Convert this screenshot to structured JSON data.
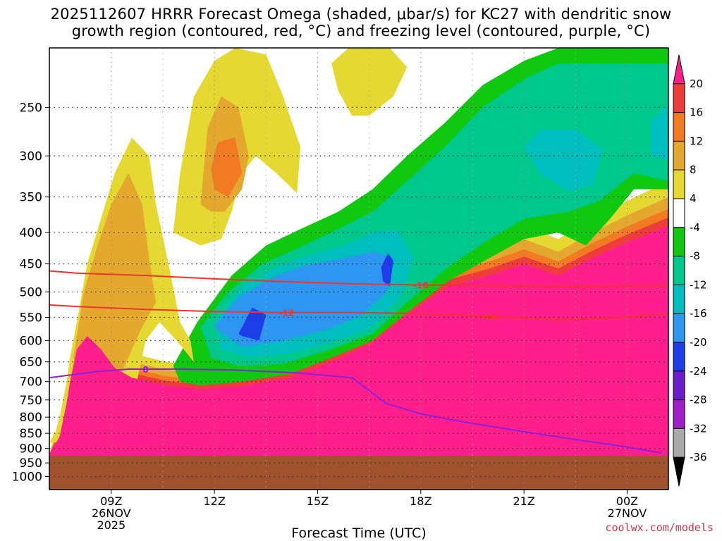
{
  "header": {
    "title_line1": "2025112607 HRRR Forecast Omega (shaded, μbar/s) for KC27 with dendritic snow",
    "title_line2": "growth region (contoured, red, °C) and freezing level (contoured, purple, °C)"
  },
  "credit": "coolwx.com/models",
  "chart_data": {
    "type": "heatmap",
    "title": "2025112607 HRRR Forecast Omega (shaded, μbar/s) for KC27 with dendritic snow growth region (contoured, red, °C) and freezing level (contoured, purple, °C)",
    "xlabel": "Forecast Time (UTC)",
    "ylabel": "",
    "x_range_hours": [
      7.2,
      25.2
    ],
    "y_range_hpa": [
      200,
      1050
    ],
    "y_scale": "log-pressure",
    "grid": true,
    "x_ticks": [
      {
        "hour": 9,
        "lines": [
          "09Z",
          "26NOV",
          "2025"
        ]
      },
      {
        "hour": 12,
        "lines": [
          "12Z"
        ]
      },
      {
        "hour": 15,
        "lines": [
          "15Z"
        ]
      },
      {
        "hour": 18,
        "lines": [
          "18Z"
        ]
      },
      {
        "hour": 21,
        "lines": [
          "21Z"
        ]
      },
      {
        "hour": 24,
        "lines": [
          "00Z",
          "27NOV"
        ]
      }
    ],
    "y_ticks": [
      250,
      300,
      350,
      400,
      450,
      500,
      550,
      600,
      650,
      700,
      750,
      800,
      850,
      900,
      950,
      1000
    ],
    "colorbar": {
      "labels": [
        "20",
        "16",
        "12",
        "8",
        "4",
        "-4",
        "-8",
        "-12",
        "-16",
        "-20",
        "-24",
        "-28",
        "-32",
        "-36"
      ],
      "colors": [
        "#ff1f8c",
        "#ee3b3b",
        "#f27a22",
        "#e5a82e",
        "#e6d832",
        "#ffffff",
        "#10c810",
        "#00c88c",
        "#00bebe",
        "#2d96f0",
        "#1e3ce8",
        "#6a1ec8",
        "#a01ec8",
        "#aaaaaa",
        "#000000"
      ]
    },
    "ground_color": "#a0522d",
    "omega_regions": [
      {
        "level": "<-4",
        "color": "#10c810",
        "polygon": [
          [
            10.8,
            660
          ],
          [
            11.5,
            560
          ],
          [
            12.5,
            470
          ],
          [
            13.5,
            420
          ],
          [
            14.5,
            395
          ],
          [
            15.6,
            370
          ],
          [
            16.6,
            340
          ],
          [
            17.6,
            300
          ],
          [
            18.7,
            265
          ],
          [
            19.8,
            230
          ],
          [
            21.0,
            210
          ],
          [
            22.0,
            200
          ],
          [
            25.2,
            200
          ],
          [
            25.2,
            340
          ],
          [
            24.2,
            340
          ],
          [
            23.5,
            380
          ],
          [
            22.8,
            420
          ],
          [
            22.0,
            400
          ],
          [
            21.0,
            410
          ],
          [
            20.0,
            440
          ],
          [
            18.8,
            480
          ],
          [
            17.6,
            540
          ],
          [
            16.6,
            600
          ],
          [
            15.4,
            640
          ],
          [
            14.2,
            680
          ],
          [
            12.8,
            700
          ],
          [
            11.6,
            710
          ],
          [
            11.0,
            700
          ]
        ]
      },
      {
        "level": "<-8",
        "color": "#00c88c",
        "polygon": [
          [
            11.6,
            570
          ],
          [
            12.4,
            500
          ],
          [
            13.4,
            450
          ],
          [
            14.6,
            420
          ],
          [
            15.6,
            395
          ],
          [
            16.6,
            370
          ],
          [
            17.6,
            330
          ],
          [
            18.7,
            290
          ],
          [
            19.8,
            250
          ],
          [
            21.0,
            225
          ],
          [
            22.0,
            212
          ],
          [
            25.2,
            212
          ],
          [
            25.2,
            330
          ],
          [
            24.2,
            320
          ],
          [
            23.2,
            355
          ],
          [
            22.3,
            370
          ],
          [
            21.0,
            380
          ],
          [
            20.0,
            410
          ],
          [
            18.8,
            455
          ],
          [
            17.6,
            520
          ],
          [
            16.6,
            585
          ],
          [
            15.4,
            620
          ],
          [
            14.0,
            655
          ],
          [
            12.7,
            660
          ],
          [
            11.9,
            640
          ]
        ]
      },
      {
        "level": "<-12",
        "color": "#00bebe",
        "polygon": [
          [
            12.0,
            560
          ],
          [
            12.8,
            490
          ],
          [
            13.8,
            455
          ],
          [
            14.8,
            435
          ],
          [
            15.8,
            420
          ],
          [
            16.6,
            400
          ],
          [
            17.3,
            395
          ],
          [
            17.8,
            440
          ],
          [
            17.4,
            510
          ],
          [
            16.6,
            570
          ],
          [
            15.6,
            600
          ],
          [
            14.2,
            630
          ],
          [
            13.0,
            640
          ],
          [
            12.2,
            620
          ]
        ]
      },
      {
        "level": "<-12b",
        "color": "#00bebe",
        "polygon": [
          [
            21.0,
            290
          ],
          [
            21.5,
            272
          ],
          [
            22.5,
            272
          ],
          [
            23.3,
            292
          ],
          [
            23.0,
            335
          ],
          [
            22.3,
            342
          ],
          [
            21.5,
            322
          ]
        ]
      },
      {
        "level": "<-12c",
        "color": "#00bebe",
        "polygon": [
          [
            24.7,
            262
          ],
          [
            25.2,
            248
          ],
          [
            25.2,
            305
          ],
          [
            24.7,
            300
          ]
        ]
      },
      {
        "level": "<-16",
        "color": "#2d96f0",
        "polygon": [
          [
            12.0,
            570
          ],
          [
            12.7,
            510
          ],
          [
            13.8,
            470
          ],
          [
            14.8,
            450
          ],
          [
            15.8,
            440
          ],
          [
            16.6,
            430
          ],
          [
            17.2,
            440
          ],
          [
            17.0,
            500
          ],
          [
            16.3,
            545
          ],
          [
            15.3,
            575
          ],
          [
            14.0,
            600
          ],
          [
            12.8,
            615
          ]
        ]
      },
      {
        "level": "<-20",
        "color": "#1e3ce8",
        "polygon": [
          [
            12.7,
            585
          ],
          [
            13.1,
            530
          ],
          [
            13.5,
            545
          ],
          [
            13.3,
            600
          ],
          [
            12.8,
            590
          ]
        ]
      },
      {
        "level": "<-20b",
        "color": "#1e3ce8",
        "polygon": [
          [
            16.85,
            455
          ],
          [
            17.05,
            432
          ],
          [
            17.2,
            445
          ],
          [
            17.1,
            490
          ],
          [
            16.9,
            480
          ]
        ]
      },
      {
        "level": ">4",
        "color": "#e6d832",
        "polygon": [
          [
            7.2,
            880
          ],
          [
            7.5,
            820
          ],
          [
            7.7,
            700
          ],
          [
            8.0,
            560
          ],
          [
            8.3,
            450
          ],
          [
            8.7,
            380
          ],
          [
            9.1,
            320
          ],
          [
            9.6,
            280
          ],
          [
            10.1,
            300
          ],
          [
            10.3,
            360
          ],
          [
            10.7,
            460
          ],
          [
            11.0,
            560
          ],
          [
            11.3,
            600
          ],
          [
            11.4,
            650
          ],
          [
            10.9,
            600
          ],
          [
            10.4,
            560
          ],
          [
            10.0,
            600
          ],
          [
            9.7,
            720
          ],
          [
            9.4,
            880
          ]
        ]
      },
      {
        "level": ">4b",
        "color": "#e6d832",
        "polygon": [
          [
            10.8,
            400
          ],
          [
            11.0,
            320
          ],
          [
            11.4,
            240
          ],
          [
            12.0,
            210
          ],
          [
            12.6,
            200
          ],
          [
            13.5,
            205
          ],
          [
            14.0,
            240
          ],
          [
            14.5,
            290
          ],
          [
            14.4,
            345
          ],
          [
            13.8,
            320
          ],
          [
            13.2,
            300
          ],
          [
            12.8,
            320
          ],
          [
            12.5,
            370
          ],
          [
            12.2,
            410
          ],
          [
            11.6,
            420
          ]
        ]
      },
      {
        "level": ">4c",
        "color": "#e6d832",
        "polygon": [
          [
            15.4,
            212
          ],
          [
            15.9,
            200
          ],
          [
            17.1,
            200
          ],
          [
            17.6,
            215
          ],
          [
            17.2,
            240
          ],
          [
            16.5,
            258
          ],
          [
            16.0,
            258
          ],
          [
            15.6,
            235
          ]
        ]
      },
      {
        "level": ">8",
        "color": "#e5a82e",
        "polygon": [
          [
            7.9,
            640
          ],
          [
            8.2,
            500
          ],
          [
            8.6,
            420
          ],
          [
            9.0,
            360
          ],
          [
            9.5,
            320
          ],
          [
            9.9,
            360
          ],
          [
            10.1,
            440
          ],
          [
            10.3,
            520
          ],
          [
            9.9,
            570
          ],
          [
            9.6,
            620
          ],
          [
            9.2,
            700
          ],
          [
            8.6,
            800
          ]
        ]
      },
      {
        "level": ">8b",
        "color": "#e5a82e",
        "polygon": [
          [
            11.6,
            360
          ],
          [
            11.8,
            270
          ],
          [
            12.2,
            240
          ],
          [
            12.7,
            250
          ],
          [
            13.0,
            300
          ],
          [
            12.8,
            340
          ],
          [
            12.3,
            370
          ],
          [
            11.9,
            370
          ]
        ]
      },
      {
        "level": ">12",
        "color": "#f27a22",
        "polygon": [
          [
            11.9,
            315
          ],
          [
            12.1,
            285
          ],
          [
            12.6,
            280
          ],
          [
            12.8,
            320
          ],
          [
            12.4,
            350
          ],
          [
            12.0,
            340
          ]
        ]
      }
    ],
    "dgz_contours": [
      {
        "label": "-18",
        "color": "#f0342c",
        "points": [
          [
            7.2,
            462
          ],
          [
            8.0,
            466
          ],
          [
            10.0,
            470
          ],
          [
            12.0,
            476
          ],
          [
            14.0,
            481
          ],
          [
            16.0,
            485
          ],
          [
            18.0,
            487
          ],
          [
            20.0,
            488
          ],
          [
            22.0,
            490
          ],
          [
            25.2,
            488
          ]
        ]
      },
      {
        "label": "-12",
        "color": "#f0342c",
        "points": [
          [
            7.2,
            525
          ],
          [
            8.0,
            528
          ],
          [
            10.0,
            534
          ],
          [
            12.0,
            538
          ],
          [
            14.0,
            540
          ],
          [
            16.0,
            540
          ],
          [
            18.0,
            542
          ],
          [
            20.0,
            548
          ],
          [
            22.0,
            555
          ],
          [
            24.0,
            550
          ],
          [
            25.2,
            542
          ]
        ]
      }
    ],
    "freezing_level": {
      "label": "0",
      "color": "#8c1edc",
      "points": [
        [
          7.2,
          690
        ],
        [
          8.5,
          675
        ],
        [
          9.5,
          668
        ],
        [
          11.0,
          668
        ],
        [
          12.5,
          670
        ],
        [
          14.5,
          678
        ],
        [
          16.0,
          690
        ],
        [
          17.0,
          760
        ],
        [
          18.0,
          790
        ],
        [
          19.0,
          810
        ],
        [
          21.0,
          845
        ],
        [
          22.5,
          870
        ],
        [
          24.0,
          895
        ],
        [
          25.0,
          915
        ]
      ]
    }
  }
}
